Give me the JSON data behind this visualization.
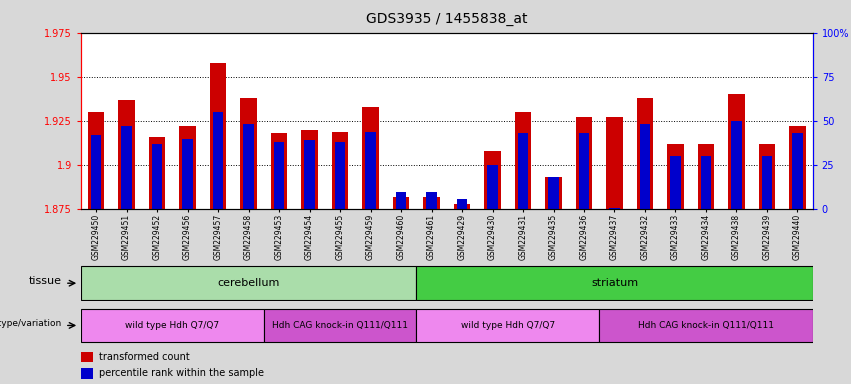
{
  "title": "GDS3935 / 1455838_at",
  "samples": [
    "GSM229450",
    "GSM229451",
    "GSM229452",
    "GSM229456",
    "GSM229457",
    "GSM229458",
    "GSM229453",
    "GSM229454",
    "GSM229455",
    "GSM229459",
    "GSM229460",
    "GSM229461",
    "GSM229429",
    "GSM229430",
    "GSM229431",
    "GSM229435",
    "GSM229436",
    "GSM229437",
    "GSM229432",
    "GSM229433",
    "GSM229434",
    "GSM229438",
    "GSM229439",
    "GSM229440"
  ],
  "red_values": [
    1.93,
    1.937,
    1.916,
    1.922,
    1.958,
    1.938,
    1.918,
    1.92,
    1.919,
    1.933,
    1.882,
    1.882,
    1.878,
    1.908,
    1.93,
    1.893,
    1.927,
    1.927,
    1.938,
    1.912,
    1.912,
    1.94,
    1.912,
    1.922
  ],
  "blue_percentiles": [
    42,
    47,
    37,
    40,
    55,
    48,
    38,
    39,
    38,
    44,
    10,
    10,
    6,
    25,
    43,
    18,
    43,
    1,
    48,
    30,
    30,
    50,
    30,
    43
  ],
  "ymin": 1.875,
  "ymax": 1.975,
  "yticks_left": [
    1.875,
    1.9,
    1.925,
    1.95,
    1.975
  ],
  "ytick_labels_left": [
    "1.875",
    "1.9",
    "1.925",
    "1.95",
    "1.975"
  ],
  "yticks_right_pct": [
    0,
    25,
    50,
    75,
    100
  ],
  "ytick_labels_right": [
    "0",
    "25",
    "50",
    "75",
    "100%"
  ],
  "gridlines_at": [
    1.9,
    1.925,
    1.95
  ],
  "tissue_groups": [
    {
      "label": "cerebellum",
      "start": 0,
      "end": 11,
      "color": "#aaddaa"
    },
    {
      "label": "striatum",
      "start": 11,
      "end": 24,
      "color": "#44cc44"
    }
  ],
  "genotype_groups": [
    {
      "label": "wild type Hdh Q7/Q7",
      "start": 0,
      "end": 6,
      "color": "#ee88ee"
    },
    {
      "label": "Hdh CAG knock-in Q111/Q111",
      "start": 6,
      "end": 11,
      "color": "#cc55cc"
    },
    {
      "label": "wild type Hdh Q7/Q7",
      "start": 11,
      "end": 17,
      "color": "#ee88ee"
    },
    {
      "label": "Hdh CAG knock-in Q111/Q111",
      "start": 17,
      "end": 24,
      "color": "#cc55cc"
    }
  ],
  "bar_width": 0.55,
  "blue_bar_width": 0.35,
  "red_color": "#cc0000",
  "blue_color": "#0000cc",
  "tissue_label": "tissue",
  "genotype_label": "genotype/variation",
  "legend_red": "transformed count",
  "legend_blue": "percentile rank within the sample",
  "background_color": "#d8d8d8",
  "plot_bg": "#ffffff",
  "title_fontsize": 10,
  "tick_fontsize": 7,
  "xtick_fontsize": 5.5,
  "annotation_fontsize": 8,
  "legend_fontsize": 7
}
